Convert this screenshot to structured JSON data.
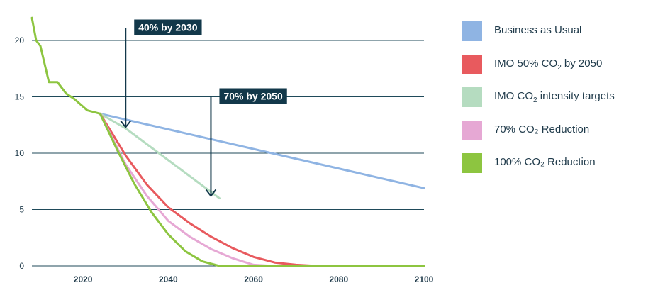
{
  "chart_data": {
    "type": "line",
    "title": "",
    "xlabel": "",
    "ylabel": "",
    "xlim": [
      2008,
      2100
    ],
    "ylim": [
      0,
      20
    ],
    "xticks": [
      2020,
      2040,
      2060,
      2080,
      2100
    ],
    "yticks": [
      0,
      5,
      10,
      15,
      20
    ],
    "grid": "horizontal",
    "legend_position": "right",
    "series": [
      {
        "name": "Business as Usual",
        "color": "#8fb4e3",
        "x": [
          2024,
          2100
        ],
        "y": [
          13.5,
          6.9
        ]
      },
      {
        "name": "IMO 50% CO₂ by 2050",
        "color": "#e85a5e",
        "x": [
          2024,
          2030,
          2035,
          2040,
          2045,
          2050,
          2055,
          2060,
          2065,
          2070,
          2075,
          2080,
          2100
        ],
        "y": [
          13.5,
          9.8,
          7.2,
          5.2,
          3.8,
          2.6,
          1.6,
          0.8,
          0.3,
          0.1,
          0.0,
          0.0,
          0.0
        ]
      },
      {
        "name": "IMO CO₂ intensity targets",
        "color": "#b5dcc0",
        "x": [
          2024,
          2030,
          2052
        ],
        "y": [
          13.5,
          12.2,
          6.0
        ]
      },
      {
        "name": "70% CO₂ Reduction",
        "color": "#e6a8d4",
        "x": [
          2024,
          2030,
          2035,
          2040,
          2045,
          2050,
          2055,
          2060,
          2065,
          2100
        ],
        "y": [
          13.5,
          9.0,
          6.2,
          4.0,
          2.6,
          1.5,
          0.7,
          0.1,
          0.0,
          0.0
        ]
      },
      {
        "name": "100% CO₂ Reduction",
        "color": "#8dc540",
        "x": [
          2008,
          2009,
          2010,
          2012,
          2014,
          2016,
          2018,
          2021,
          2024,
          2028,
          2032,
          2036,
          2040,
          2044,
          2048,
          2052,
          2100
        ],
        "y": [
          22,
          20.0,
          19.5,
          16.3,
          16.3,
          15.3,
          14.8,
          13.8,
          13.5,
          10.3,
          7.3,
          4.8,
          2.8,
          1.3,
          0.4,
          0.0,
          0.0
        ]
      }
    ],
    "annotations": [
      {
        "text": "40% by 2030",
        "x": 2030,
        "y_from": 21.1,
        "y_to": 12.3
      },
      {
        "text": "70% by 2050",
        "x": 2050,
        "y_from": 15.0,
        "y_to": 6.2
      }
    ]
  },
  "legend": [
    {
      "main": "Business as Usual",
      "sub": "",
      "tail": "",
      "color": "#8fb4e3"
    },
    {
      "main": "IMO 50% CO",
      "sub": "2",
      "tail": " by 2050",
      "color": "#e85a5e"
    },
    {
      "main": "IMO CO",
      "sub": "2",
      "tail": " intensity targets",
      "color": "#b5dcc0"
    },
    {
      "main": "70% CO₂ Reduction",
      "sub": "",
      "tail": "",
      "color": "#e6a8d4"
    },
    {
      "main": "100% CO₂ Reduction",
      "sub": "",
      "tail": "",
      "color": "#8dc540"
    }
  ]
}
